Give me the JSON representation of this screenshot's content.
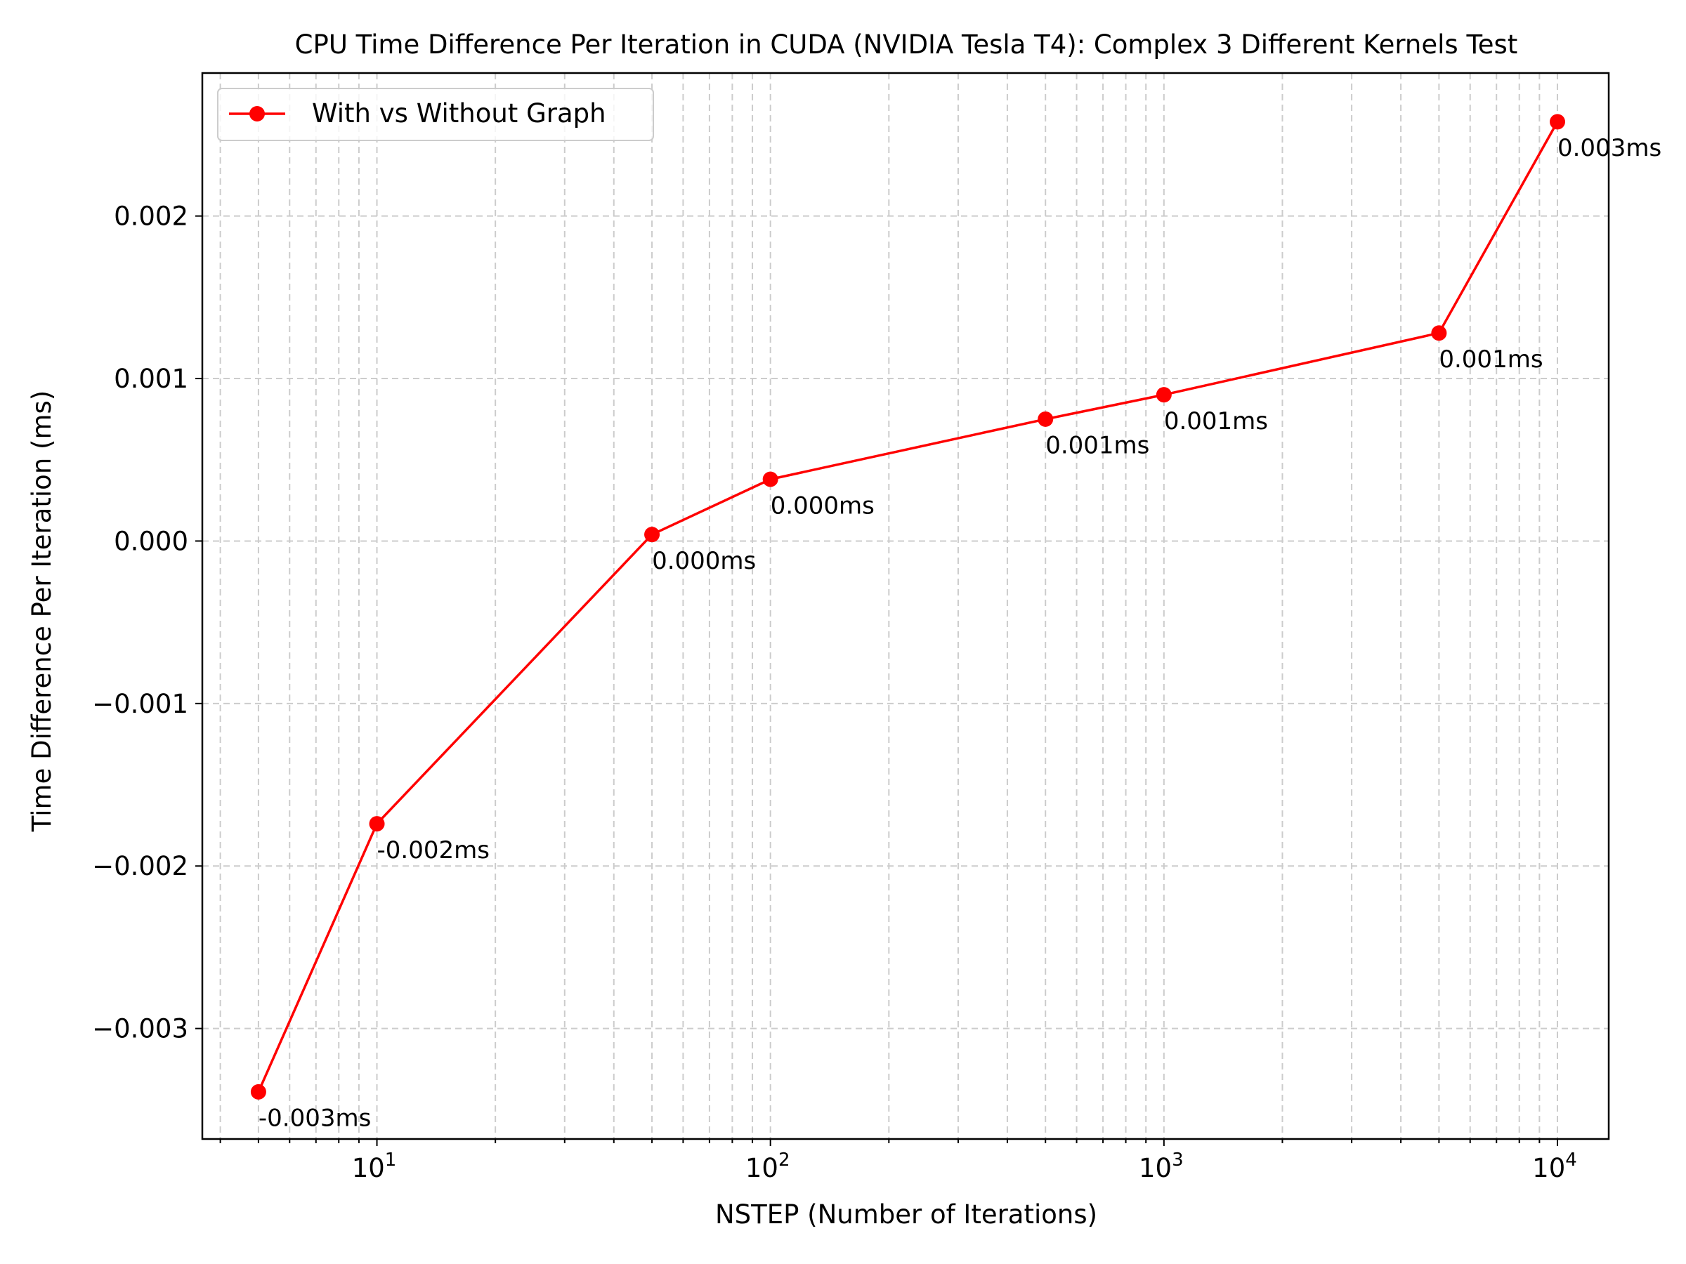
{
  "chart_data": {
    "type": "line",
    "title": "CPU Time Difference Per Iteration in CUDA (NVIDIA Tesla T4): Complex 3 Different Kernels Test",
    "xlabel": "NSTEP (Number of Iterations)",
    "ylabel": "Time Difference Per Iteration (ms)",
    "xscale": "log",
    "xlim": [
      3.6,
      13500
    ],
    "ylim": [
      -0.00368,
      0.00288
    ],
    "x_ticks": [
      {
        "base": "10",
        "exp": "1",
        "value": 10
      },
      {
        "base": "10",
        "exp": "2",
        "value": 100
      },
      {
        "base": "10",
        "exp": "3",
        "value": 1000
      },
      {
        "base": "10",
        "exp": "4",
        "value": 10000
      }
    ],
    "y_ticks": [
      {
        "label": "0.002",
        "value": 0.002
      },
      {
        "label": "0.001",
        "value": 0.001
      },
      {
        "label": "0.000",
        "value": 0.0
      },
      {
        "label": "−0.001",
        "value": -0.001
      },
      {
        "label": "−0.002",
        "value": -0.002
      },
      {
        "label": "−0.003",
        "value": -0.003
      }
    ],
    "grid": true,
    "legend_position": "top-left",
    "series": [
      {
        "name": "With vs Without Graph",
        "color": "#ff0000",
        "marker": "circle",
        "x": [
          5,
          10,
          50,
          100,
          500,
          1000,
          5000,
          10000
        ],
        "y": [
          -0.00339,
          -0.00174,
          4e-05,
          0.00038,
          0.00075,
          0.0009,
          0.00128,
          0.00258
        ],
        "point_labels": [
          "-0.003ms",
          "-0.002ms",
          "0.000ms",
          "0.000ms",
          "0.001ms",
          "0.001ms",
          "0.001ms",
          "0.003ms"
        ]
      }
    ]
  }
}
